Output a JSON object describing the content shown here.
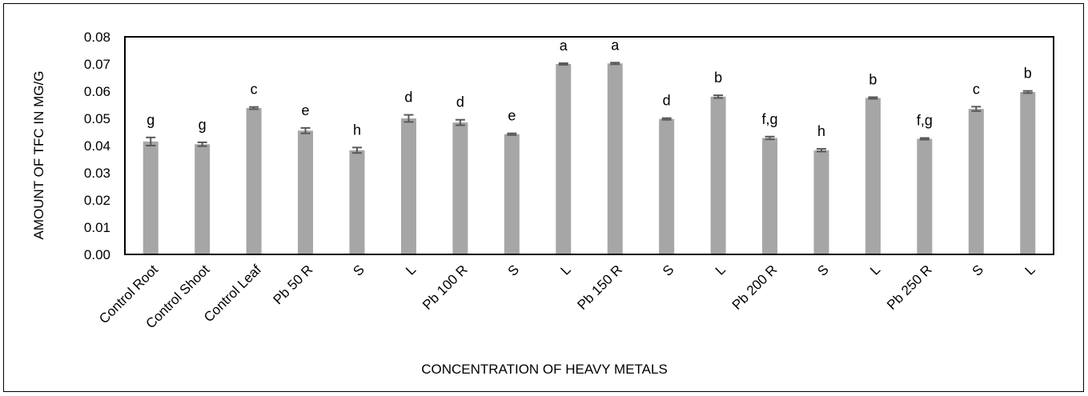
{
  "chart_data": {
    "type": "bar",
    "title": "",
    "xlabel": "CONCENTRATION OF HEAVY METALS",
    "ylabel": "AMOUNT OF TFC IN MG/G",
    "ylim": [
      0,
      0.08
    ],
    "yticks": [
      "0.00",
      "0.01",
      "0.02",
      "0.03",
      "0.04",
      "0.05",
      "0.06",
      "0.07",
      "0.08"
    ],
    "grid": false,
    "legend": "none",
    "bar_color": "#a6a6a6",
    "error_color": "#595959",
    "categories": [
      "Control Root",
      "Control Shoot",
      "Control Leaf",
      "Pb 50 R",
      "S",
      "L",
      "Pb 100 R",
      "S",
      "L",
      "Pb 150 R",
      "S",
      "L",
      "Pb 200 R",
      "S",
      "L",
      "Pb 250 R",
      "S",
      "L"
    ],
    "values": [
      0.0415,
      0.0405,
      0.0538,
      0.0455,
      0.0383,
      0.05,
      0.0485,
      0.0442,
      0.07,
      0.0702,
      0.0498,
      0.058,
      0.0428,
      0.0383,
      0.0575,
      0.0425,
      0.0535,
      0.0597
    ],
    "errors": [
      0.0015,
      0.0007,
      0.0004,
      0.001,
      0.001,
      0.0013,
      0.001,
      0.0003,
      0.0003,
      0.0003,
      0.0003,
      0.0005,
      0.0005,
      0.0005,
      0.0003,
      0.0003,
      0.0008,
      0.0004
    ],
    "letters": [
      "g",
      "g",
      "c",
      "e",
      "h",
      "d",
      "d",
      "e",
      "a",
      "a",
      "d",
      "b",
      "f,g",
      "h",
      "b",
      "f,g",
      "c",
      "b"
    ]
  }
}
